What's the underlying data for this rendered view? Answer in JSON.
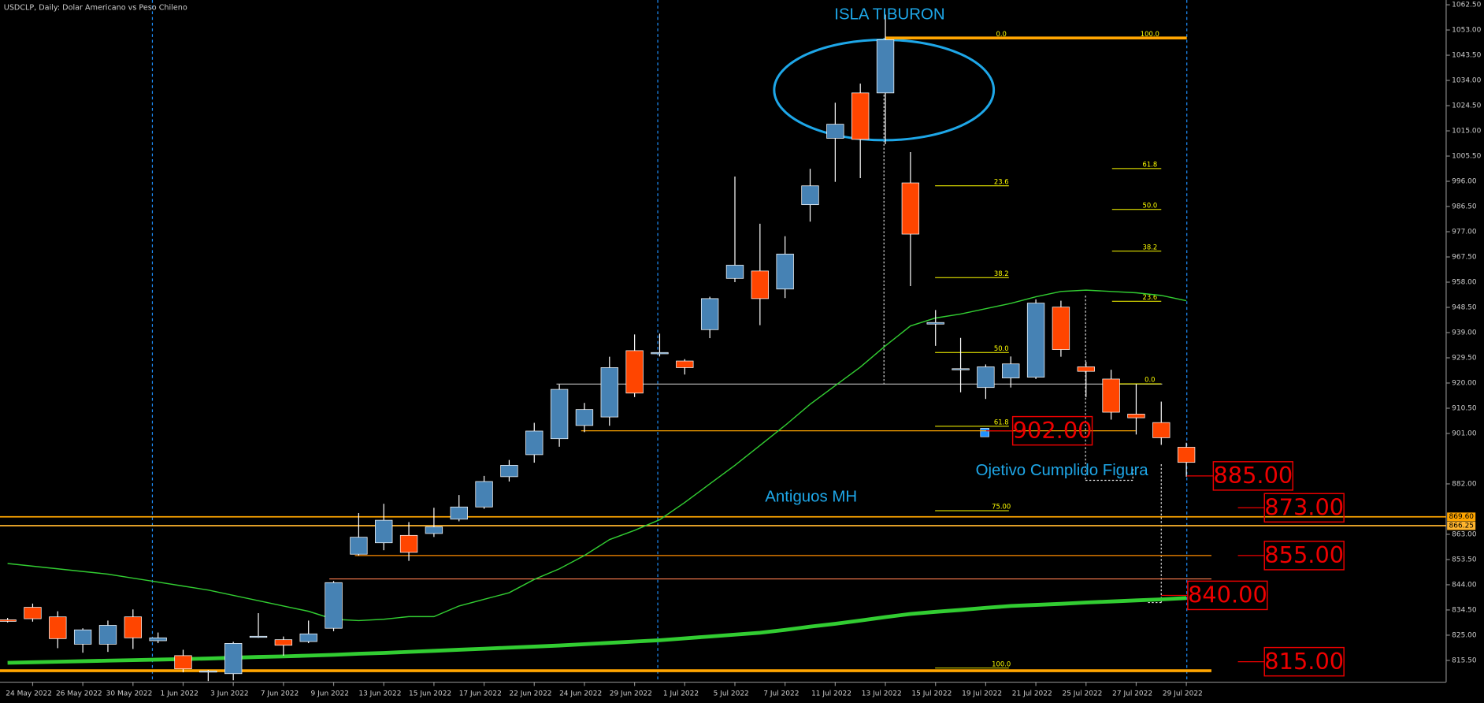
{
  "chart_data": {
    "type": "candlestick",
    "title": "USDCLP, Daily:  Dolar Americano vs Peso Chileno",
    "categories": [
      null,
      "24 May 2022",
      null,
      "26 May 2022",
      null,
      "30 May 2022",
      null,
      "1 Jun 2022",
      null,
      "3 Jun 2022",
      null,
      "7 Jun 2022",
      null,
      "9 Jun 2022",
      null,
      "13 Jun 2022",
      null,
      "15 Jun 2022",
      null,
      "17 Jun 2022",
      null,
      "22 Jun 2022",
      null,
      "24 Jun 2022",
      null,
      "29 Jun 2022",
      null,
      "1 Jul 2022",
      null,
      "5 Jul 2022",
      null,
      "7 Jul 2022",
      null,
      "11 Jul 2022",
      null,
      "13 Jul 2022",
      null,
      "15 Jul 2022",
      null,
      "19 Jul 2022",
      null,
      "21 Jul 2022",
      null,
      "25 Jul 2022",
      null,
      "27 Jul 2022",
      null,
      "29 Jul 2022"
    ],
    "open": [
      830.8,
      835.5,
      831.9,
      821.6,
      821.6,
      831.9,
      822.9,
      817.3,
      811.2,
      810.5,
      824.4,
      823.3,
      822.6,
      827.6,
      855.5,
      859.8,
      862.6,
      863.3,
      868.7,
      873.3,
      884.7,
      893,
      899,
      904,
      907.2,
      932.2,
      931,
      928.3,
      940.1,
      959.4,
      962.2,
      955.4,
      987.2,
      1012.2,
      1029.3,
      1029.3,
      995.4,
      942.2,
      925,
      918.3,
      921.9,
      922.2,
      948.6,
      926.1,
      921.5,
      908.3,
      905.1,
      895.8
    ],
    "high": [
      831.5,
      836.9,
      834,
      827.6,
      830.5,
      834.7,
      826,
      819.5,
      811.9,
      822.5,
      833.3,
      824.5,
      830.5,
      845.4,
      871,
      874.5,
      867.6,
      873,
      877.8,
      885,
      891,
      905,
      919.5,
      912.5,
      929.9,
      938.3,
      938.6,
      929,
      952.5,
      997.8,
      980,
      975.3,
      1000.7,
      1025.6,
      1032.8,
      1058.8,
      1007,
      947.5,
      937,
      927,
      930,
      951.5,
      951,
      928,
      925,
      919.6,
      913,
      897.5
    ],
    "low": [
      829.8,
      830.1,
      820.1,
      818.4,
      818.7,
      819.8,
      822,
      811,
      807.7,
      808,
      824,
      817.3,
      822,
      826.5,
      855,
      857,
      853,
      862,
      867.9,
      872.6,
      882.9,
      890,
      896,
      901.5,
      903.9,
      914.7,
      930,
      923.2,
      936.9,
      958,
      941.8,
      952,
      980.8,
      995.8,
      997.2,
      1010,
      956.5,
      934,
      916.5,
      914,
      918.3,
      921.5,
      929.9,
      914.7,
      906.2,
      900.6,
      896.7,
      884.7
    ],
    "close": [
      830.2,
      831.2,
      823.7,
      827,
      828.7,
      824,
      824,
      812.3,
      811.5,
      821.9,
      824.6,
      821.2,
      825.5,
      844.8,
      861.9,
      868.3,
      856.2,
      865.8,
      873.3,
      882.9,
      889,
      901.9,
      917.6,
      910,
      925.8,
      916.2,
      931.5,
      925.8,
      951.8,
      964.4,
      951.8,
      968.6,
      994.3,
      1017.5,
      1011.8,
      1049.3,
      976.1,
      942.8,
      925.4,
      926.1,
      927.2,
      950.1,
      932.6,
      924.4,
      909,
      906.9,
      899.4,
      890.1
    ],
    "up_color": "#4682b4",
    "down_color": "#ff4500",
    "ylim": [
      807.3,
      1064.3
    ],
    "yticks": [
      {
        "value": 1062.5,
        "label": "1062.50"
      },
      {
        "value": 1053,
        "label": "1053.00"
      },
      {
        "value": 1043.5,
        "label": "1043.50"
      },
      {
        "value": 1034,
        "label": "1034.00"
      },
      {
        "value": 1024.5,
        "label": "1024.50"
      },
      {
        "value": 1015,
        "label": "1015.00"
      },
      {
        "value": 1005.5,
        "label": "1005.50"
      },
      {
        "value": 996,
        "label": "996.00"
      },
      {
        "value": 986.5,
        "label": "986.50"
      },
      {
        "value": 977,
        "label": "977.00"
      },
      {
        "value": 967.5,
        "label": "967.50"
      },
      {
        "value": 958,
        "label": "958.00"
      },
      {
        "value": 948.5,
        "label": "948.50"
      },
      {
        "value": 939,
        "label": "939.00"
      },
      {
        "value": 929.5,
        "label": "929.50"
      },
      {
        "value": 920,
        "label": "920.00"
      },
      {
        "value": 910.5,
        "label": "910.50"
      },
      {
        "value": 901,
        "label": "901.00"
      },
      {
        "value": 882,
        "label": "882.00"
      },
      {
        "value": 863,
        "label": "863.00"
      },
      {
        "value": 853.5,
        "label": "853.50"
      },
      {
        "value": 844,
        "label": "844.00"
      },
      {
        "value": 834.5,
        "label": "834.50"
      },
      {
        "value": 825,
        "label": "825.00"
      },
      {
        "value": 815.5,
        "label": "815.50"
      }
    ],
    "grid": false,
    "lines": [
      {
        "color": "#32cd32",
        "values": [
          852,
          851,
          850,
          849,
          848,
          846.5,
          845,
          843.5,
          842,
          840,
          838,
          836,
          834,
          831,
          830.5,
          831,
          832,
          832,
          836,
          838.5,
          841,
          846,
          850,
          855,
          861,
          864.5,
          868.5,
          875,
          882,
          889,
          896.5,
          904,
          912,
          919,
          926,
          934,
          941.5,
          944.5,
          946,
          948,
          950,
          952.5,
          954.5,
          955,
          954.5,
          954,
          953,
          951
        ]
      },
      {
        "color": "#32cd32",
        "values": [
          814.6,
          814.8,
          815,
          815.2,
          815.4,
          815.6,
          815.8,
          816,
          816.2,
          816.5,
          816.8,
          817,
          817.3,
          817.6,
          818,
          818.3,
          818.7,
          819.1,
          819.5,
          819.9,
          820.3,
          820.7,
          821.1,
          821.6,
          822.1,
          822.6,
          823.1,
          823.8,
          824.5,
          825.2,
          825.9,
          827,
          828.2,
          829.3,
          830.5,
          831.8,
          833,
          833.8,
          834.5,
          835.3,
          836,
          836.4,
          836.8,
          837.3,
          837.7,
          838.1,
          838.5,
          839
        ]
      }
    ],
    "levels": [
      {
        "value": 1050,
        "color": "#ffa500"
      },
      {
        "value": 869.6,
        "label": "869.60",
        "color": "#ffa500"
      },
      {
        "value": 866.25,
        "label": "866.25",
        "color": "#ffb52e"
      },
      {
        "value": 855,
        "color": "#ff8c00"
      },
      {
        "value": 846.2,
        "color": "#ff7f50"
      },
      {
        "value": 811.6,
        "color": "#ffa500"
      },
      {
        "value": 919.6,
        "color": "#c0c0c0"
      },
      {
        "value": 902,
        "color": "#ffa500"
      }
    ],
    "fibs": [
      {
        "color": "#ffff00",
        "levels": [
          {
            "value": 1050,
            "label": "100.0"
          },
          {
            "value": 1000.8,
            "label": "61.8"
          },
          {
            "value": 985.4,
            "label": "50.0"
          },
          {
            "value": 969.7,
            "label": "38.2"
          },
          {
            "value": 950.8,
            "label": "23.6"
          },
          {
            "value": 919.7,
            "label": "0.0"
          }
        ]
      },
      {
        "color": "#ffff00",
        "levels": [
          {
            "value": 1050,
            "label": "0.0"
          },
          {
            "value": 994.3,
            "label": "23.6"
          },
          {
            "value": 959.7,
            "label": "38.2"
          },
          {
            "value": 931.5,
            "label": "50.0"
          },
          {
            "value": 903.7,
            "label": "61.8"
          },
          {
            "value": 871.9,
            "label": "75.00"
          },
          {
            "value": 812.6,
            "label": "100.0"
          }
        ]
      }
    ],
    "price_labels": [
      {
        "value": 902,
        "label": "902.00"
      },
      {
        "value": 885,
        "label": "885.00"
      },
      {
        "value": 873,
        "label": "873.00"
      },
      {
        "value": 855,
        "label": "855.00"
      },
      {
        "value": 840,
        "label": "840.00"
      },
      {
        "value": 815,
        "label": "815.00"
      }
    ],
    "annotations": [
      "ISLA TIBURON",
      "Antiguos MH",
      "Ojetivo Cumplido Figura"
    ],
    "annotation_color": "#1ea7e8"
  }
}
